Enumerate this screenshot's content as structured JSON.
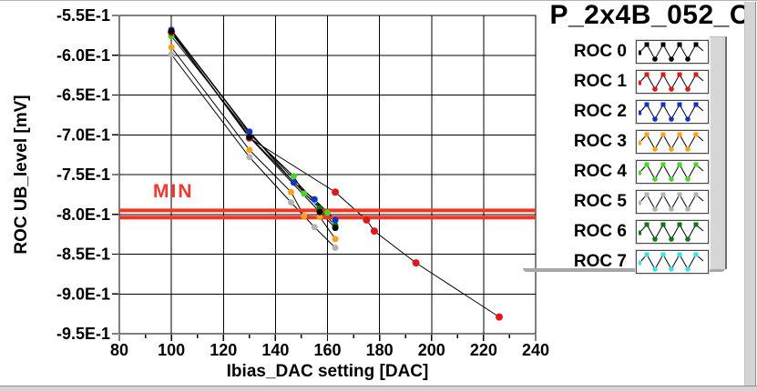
{
  "window": {
    "title": "P_2x4B_052_C"
  },
  "axes": {
    "y_label": "ROC UB_level [mV]",
    "x_label": "Ibias_DAC setting [DAC]"
  },
  "annotations": {
    "min_label": "MIN"
  },
  "legend": {
    "items": [
      {
        "label": "ROC 0",
        "color": "#000000"
      },
      {
        "label": "ROC 1",
        "color": "#e01818"
      },
      {
        "label": "ROC 2",
        "color": "#1430c8"
      },
      {
        "label": "ROC 3",
        "color": "#ffa01c"
      },
      {
        "label": "ROC 4",
        "color": "#4ad428"
      },
      {
        "label": "ROC 5",
        "color": "#b2b2b2"
      },
      {
        "label": "ROC 6",
        "color": "#0c7a14"
      },
      {
        "label": "ROC 7",
        "color": "#40e0e0"
      }
    ]
  },
  "chart_data": {
    "type": "line",
    "title": "P_2x4B_052_C",
    "xlabel": "Ibias_DAC setting [DAC]",
    "ylabel": "ROC UB_level [mV]",
    "xlim": [
      80,
      240
    ],
    "ylim": [
      -0.95,
      -0.55
    ],
    "x_ticks": [
      80,
      100,
      120,
      140,
      160,
      180,
      200,
      220,
      240
    ],
    "x_tick_labels": [
      "80",
      "100",
      "120",
      "140",
      "160",
      "180",
      "200",
      "220",
      "240"
    ],
    "y_ticks": [
      -0.55,
      -0.6,
      -0.65,
      -0.7,
      -0.75,
      -0.8,
      -0.85,
      -0.9,
      -0.95
    ],
    "y_tick_labels": [
      "-5.5E-1",
      "-6.0E-1",
      "-6.5E-1",
      "-7.0E-1",
      "-7.5E-1",
      "-8.0E-1",
      "-8.5E-1",
      "-9.0E-1",
      "-9.5E-1"
    ],
    "grid": true,
    "legend_position": "right",
    "line_color": "#000000",
    "min_limit": {
      "label": "MIN",
      "values": [
        -0.795,
        -0.804
      ],
      "color": "#f83420"
    },
    "series": [
      {
        "name": "ROC 0",
        "color": "#000000",
        "x": [
          100,
          130,
          157,
          163
        ],
        "y": [
          -0.57,
          -0.703,
          -0.797,
          -0.817
        ]
      },
      {
        "name": "ROC 1",
        "color": "#e01818",
        "x": [
          100,
          130,
          163,
          175,
          178,
          194,
          226
        ],
        "y": [
          -0.571,
          -0.704,
          -0.772,
          -0.807,
          -0.821,
          -0.861,
          -0.929
        ]
      },
      {
        "name": "ROC 2",
        "color": "#1430c8",
        "x": [
          100,
          130,
          147,
          155,
          163
        ],
        "y": [
          -0.568,
          -0.696,
          -0.76,
          -0.781,
          -0.807
        ]
      },
      {
        "name": "ROC 3",
        "color": "#ffa01c",
        "x": [
          100,
          130,
          146,
          151,
          157,
          163
        ],
        "y": [
          -0.59,
          -0.719,
          -0.772,
          -0.802,
          -0.803,
          -0.831
        ]
      },
      {
        "name": "ROC 4",
        "color": "#4ad428",
        "x": [
          100,
          130,
          147,
          151,
          160
        ],
        "y": [
          -0.576,
          -0.699,
          -0.752,
          -0.774,
          -0.798
        ]
      },
      {
        "name": "ROC 5",
        "color": "#b2b2b2",
        "x": [
          100,
          130,
          146,
          155,
          163
        ],
        "y": [
          -0.599,
          -0.728,
          -0.785,
          -0.816,
          -0.842
        ]
      },
      {
        "name": "ROC 6",
        "color": "#0c7a14",
        "x": [
          100,
          130,
          157,
          163
        ],
        "y": [
          -0.572,
          -0.702,
          -0.793,
          -0.814
        ]
      },
      {
        "name": "ROC 7",
        "color": "#40e0e0",
        "x": [
          100,
          130,
          155,
          163
        ],
        "y": [
          -0.569,
          -0.697,
          -0.783,
          -0.809
        ]
      }
    ],
    "draw_order": [
      7,
      5,
      4,
      3,
      6,
      2,
      1,
      0
    ]
  }
}
